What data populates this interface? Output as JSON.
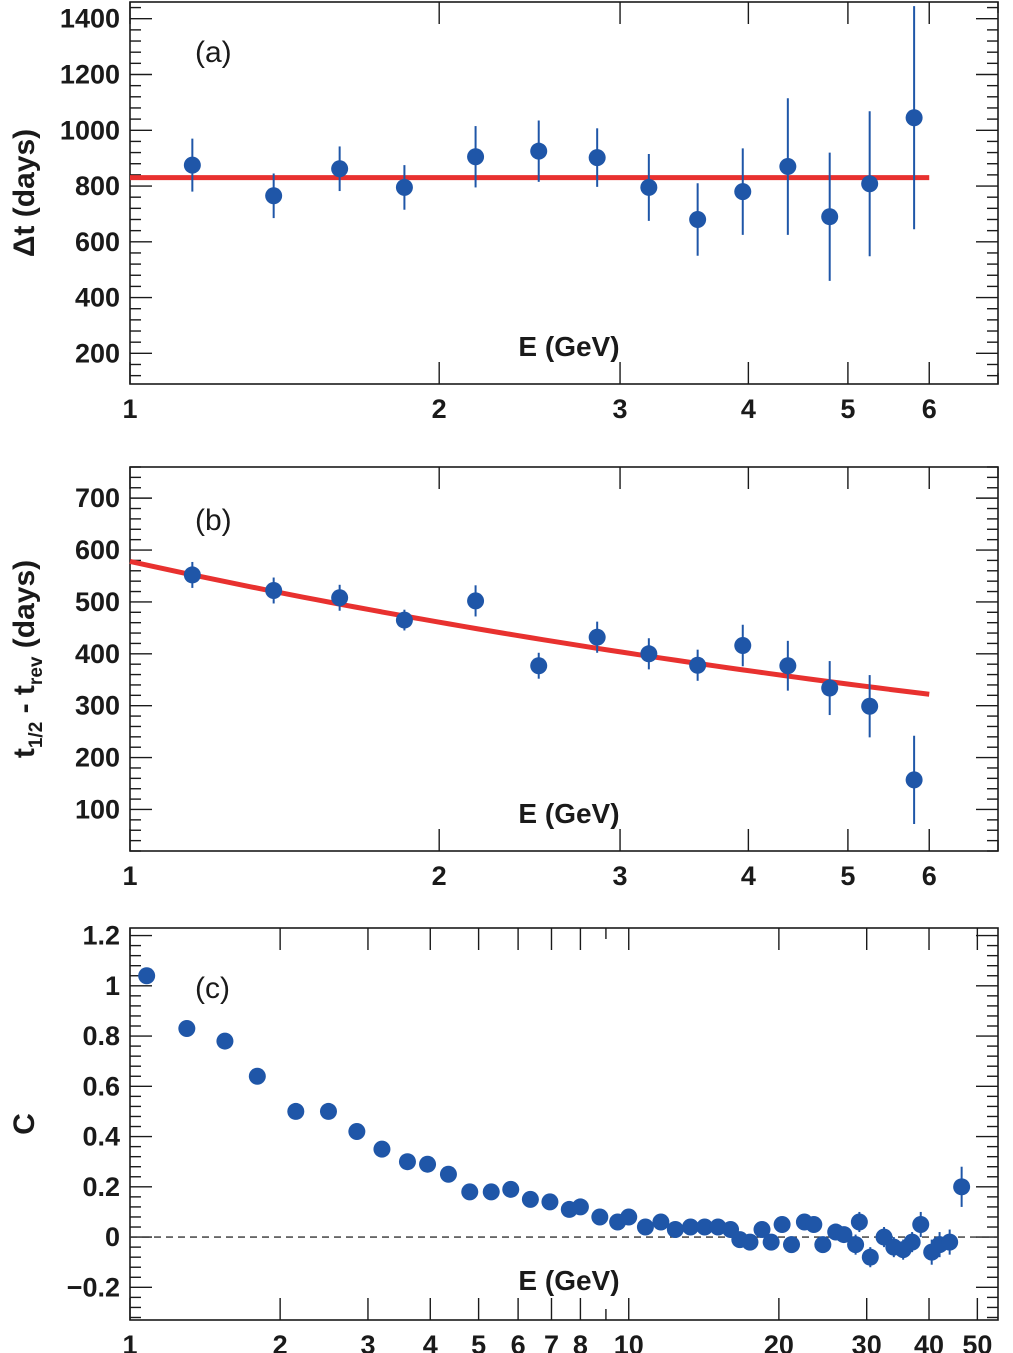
{
  "colors": {
    "marker": "#1f56a8",
    "fit": "#e8312f",
    "axis": "#1a1a1a",
    "zero_line": "#333333"
  },
  "chart_data": [
    {
      "type": "scatter",
      "panel_label": "(a)",
      "ylabel": "Δt (days)",
      "ylabel_parts": [
        "Δt (days)"
      ],
      "xlabel": "E (GeV)",
      "x_scale": "log",
      "xlim": [
        1,
        7
      ],
      "ylim": [
        90,
        1460
      ],
      "x_ticks": [
        1,
        2,
        3,
        4,
        5,
        6
      ],
      "x_tick_labels": [
        "1",
        "2",
        "3",
        "4",
        "5",
        "6"
      ],
      "y_ticks": [
        200,
        400,
        600,
        800,
        1000,
        1200,
        1400
      ],
      "y_tick_labels": [
        "200",
        "400",
        "600",
        "800",
        "1000",
        "1200",
        "1400"
      ],
      "series": [
        {
          "x": [
            1.15,
            1.38,
            1.6,
            1.85,
            2.17,
            2.5,
            2.85,
            3.2,
            3.57,
            3.95,
            4.37,
            4.8,
            5.25,
            5.8
          ],
          "y": [
            875,
            765,
            862,
            795,
            905,
            925,
            902,
            795,
            680,
            780,
            870,
            690,
            808,
            1045
          ],
          "yerr": [
            95,
            80,
            80,
            80,
            110,
            110,
            105,
            120,
            130,
            155,
            245,
            230,
            260,
            400
          ]
        }
      ],
      "fit": {
        "kind": "constant",
        "value": 830,
        "x_range": [
          1,
          6
        ]
      }
    },
    {
      "type": "scatter",
      "panel_label": "(b)",
      "ylabel": "t1/2 - trev (days)",
      "ylabel_parts": [
        "t",
        "1/2",
        " - t",
        "rev",
        " (days)"
      ],
      "xlabel": "E (GeV)",
      "x_scale": "log",
      "xlim": [
        1,
        7
      ],
      "ylim": [
        20,
        760
      ],
      "x_ticks": [
        1,
        2,
        3,
        4,
        5,
        6
      ],
      "x_tick_labels": [
        "1",
        "2",
        "3",
        "4",
        "5",
        "6"
      ],
      "y_ticks": [
        100,
        200,
        300,
        400,
        500,
        600,
        700
      ],
      "y_tick_labels": [
        "100",
        "200",
        "300",
        "400",
        "500",
        "600",
        "700"
      ],
      "series": [
        {
          "x": [
            1.15,
            1.38,
            1.6,
            1.85,
            2.17,
            2.5,
            2.85,
            3.2,
            3.57,
            3.95,
            4.37,
            4.8,
            5.25,
            5.8
          ],
          "y": [
            552,
            522,
            508,
            465,
            502,
            377,
            432,
            400,
            378,
            416,
            377,
            334,
            299,
            157
          ],
          "yerr": [
            25,
            25,
            25,
            20,
            30,
            25,
            30,
            30,
            30,
            40,
            48,
            52,
            60,
            85
          ]
        }
      ],
      "fit": {
        "kind": "powerlaw",
        "x_range": [
          1,
          6
        ],
        "y_at_1": 578,
        "y_at_6": 322
      }
    },
    {
      "type": "scatter",
      "panel_label": "(c)",
      "ylabel": "C",
      "ylabel_parts": [
        "C"
      ],
      "xlabel": "E (GeV)",
      "x_scale": "log",
      "xlim": [
        1,
        55
      ],
      "ylim": [
        -0.33,
        1.23
      ],
      "x_ticks": [
        1,
        2,
        3,
        4,
        5,
        6,
        7,
        8,
        10,
        20,
        30,
        40,
        50
      ],
      "x_tick_labels": [
        "1",
        "2",
        "3",
        "4",
        "5",
        "6",
        "7",
        "8",
        "10",
        "20",
        "30",
        "40",
        "50"
      ],
      "y_ticks": [
        -0.2,
        0,
        0.2,
        0.4,
        0.6,
        0.8,
        1,
        1.2
      ],
      "y_tick_labels": [
        "−0.2",
        "0",
        "0.2",
        "0.4",
        "0.6",
        "0.8",
        "1",
        "1.2"
      ],
      "zero_line": true,
      "series": [
        {
          "x": [
            1.08,
            1.3,
            1.55,
            1.8,
            2.15,
            2.5,
            2.85,
            3.2,
            3.6,
            3.95,
            4.35,
            4.8,
            5.3,
            5.8,
            6.35,
            6.95,
            7.6,
            8.0,
            8.75,
            9.5,
            10.0,
            10.8,
            11.6,
            12.4,
            13.3,
            14.2,
            15.1,
            16.0,
            16.7,
            17.5,
            18.5,
            19.3,
            20.3,
            21.2,
            22.5,
            23.5,
            24.5,
            26.0,
            27.0,
            28.5,
            29.0,
            30.5,
            32.5,
            34.0,
            35.5,
            37.0,
            38.5,
            40.5,
            42.0,
            44.0,
            46.5
          ],
          "y": [
            1.04,
            0.83,
            0.78,
            0.64,
            0.5,
            0.5,
            0.42,
            0.35,
            0.3,
            0.29,
            0.25,
            0.18,
            0.18,
            0.19,
            0.15,
            0.14,
            0.11,
            0.12,
            0.08,
            0.06,
            0.08,
            0.04,
            0.06,
            0.03,
            0.04,
            0.04,
            0.04,
            0.03,
            -0.01,
            -0.02,
            0.03,
            -0.02,
            0.05,
            -0.03,
            0.06,
            0.05,
            -0.03,
            0.02,
            0.01,
            -0.03,
            0.06,
            -0.08,
            0.0,
            -0.04,
            -0.05,
            -0.02,
            0.05,
            -0.06,
            -0.03,
            -0.02,
            0.2
          ],
          "yerr": [
            0.03,
            0.02,
            0.02,
            0.02,
            0.02,
            0.02,
            0.02,
            0.02,
            0.02,
            0.02,
            0.02,
            0.02,
            0.02,
            0.02,
            0.02,
            0.02,
            0.02,
            0.02,
            0.02,
            0.02,
            0.02,
            0.02,
            0.02,
            0.02,
            0.02,
            0.02,
            0.02,
            0.02,
            0.02,
            0.02,
            0.03,
            0.03,
            0.03,
            0.03,
            0.03,
            0.03,
            0.03,
            0.03,
            0.03,
            0.04,
            0.04,
            0.04,
            0.04,
            0.04,
            0.04,
            0.04,
            0.05,
            0.05,
            0.05,
            0.05,
            0.08
          ]
        }
      ]
    }
  ]
}
